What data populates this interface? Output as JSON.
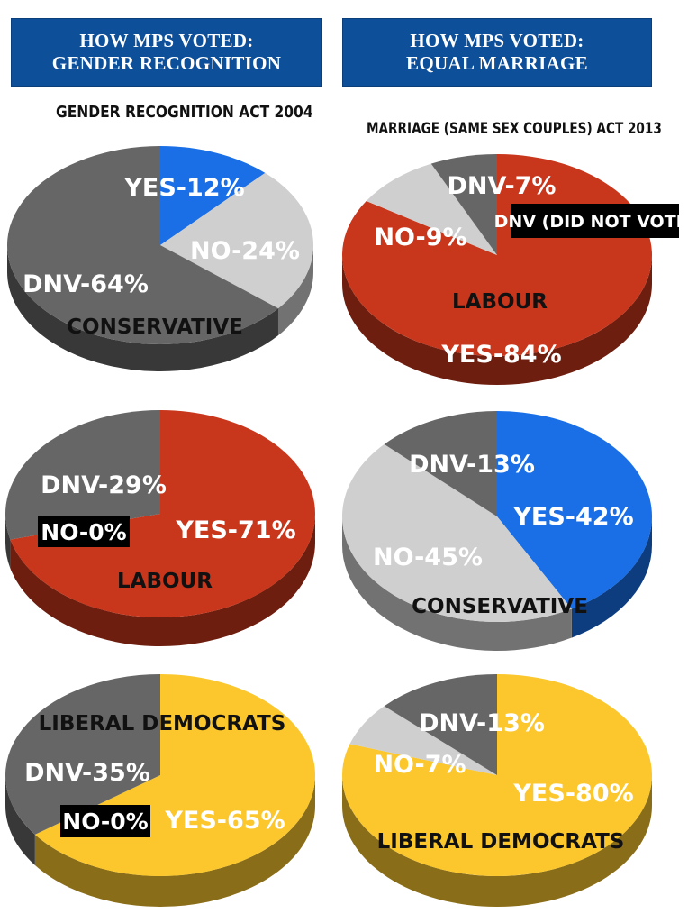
{
  "headers": {
    "left": {
      "line1": "HOW MPS  VOTED:",
      "line2": "GENDER RECOGNITION"
    },
    "right": {
      "line1": "HOW MPS VOTED:",
      "line2": "EQUAL MARRIAGE"
    }
  },
  "subtitles": {
    "left": "GENDER RECOGNITION ACT 2004",
    "right": "MARRIAGE (SAME SEX COUPLES) ACT 2013"
  },
  "legend_note": "DNV (DID NOT VOTE)",
  "colors": {
    "yes_conservative": "#1a6fe6",
    "yes_labour": "#c8361c",
    "yes_libdem": "#fbc72c",
    "no": "#cfcfcf",
    "dnv": "#666666",
    "header_bg": "#0e4f9a"
  },
  "chart_data": [
    {
      "type": "pie",
      "title": "GENDER RECOGNITION ACT 2004",
      "party": "CONSERVATIVE",
      "slices": [
        {
          "label": "YES",
          "value": 12,
          "text": "YES-12%"
        },
        {
          "label": "NO",
          "value": 24,
          "text": "NO-24%"
        },
        {
          "label": "DNV",
          "value": 64,
          "text": "DNV-64%"
        }
      ]
    },
    {
      "type": "pie",
      "title": "GENDER RECOGNITION ACT 2004",
      "party": "LABOUR",
      "slices": [
        {
          "label": "YES",
          "value": 71,
          "text": "YES-71%"
        },
        {
          "label": "NO",
          "value": 0,
          "text": "NO-0%"
        },
        {
          "label": "DNV",
          "value": 29,
          "text": "DNV-29%"
        }
      ]
    },
    {
      "type": "pie",
      "title": "GENDER RECOGNITION ACT 2004",
      "party": "LIBERAL DEMOCRATS",
      "slices": [
        {
          "label": "YES",
          "value": 65,
          "text": "YES-65%"
        },
        {
          "label": "NO",
          "value": 0,
          "text": "NO-0%"
        },
        {
          "label": "DNV",
          "value": 35,
          "text": "DNV-35%"
        }
      ]
    },
    {
      "type": "pie",
      "title": "MARRIAGE (SAME SEX COUPLES) ACT 2013",
      "party": "LABOUR",
      "slices": [
        {
          "label": "YES",
          "value": 84,
          "text": "YES-84%"
        },
        {
          "label": "NO",
          "value": 9,
          "text": "NO-9%"
        },
        {
          "label": "DNV",
          "value": 7,
          "text": "DNV-7%"
        }
      ]
    },
    {
      "type": "pie",
      "title": "MARRIAGE (SAME SEX COUPLES) ACT 2013",
      "party": "CONSERVATIVE",
      "slices": [
        {
          "label": "YES",
          "value": 42,
          "text": "YES-42%"
        },
        {
          "label": "NO",
          "value": 45,
          "text": "NO-45%"
        },
        {
          "label": "DNV",
          "value": 13,
          "text": "DNV-13%"
        }
      ]
    },
    {
      "type": "pie",
      "title": "MARRIAGE (SAME SEX COUPLES) ACT 2013",
      "party": "LIBERAL DEMOCRATS",
      "slices": [
        {
          "label": "YES",
          "value": 80,
          "text": "YES-80%"
        },
        {
          "label": "NO",
          "value": 7,
          "text": "NO-7%"
        },
        {
          "label": "DNV",
          "value": 13,
          "text": "DNV-13%"
        }
      ]
    }
  ]
}
